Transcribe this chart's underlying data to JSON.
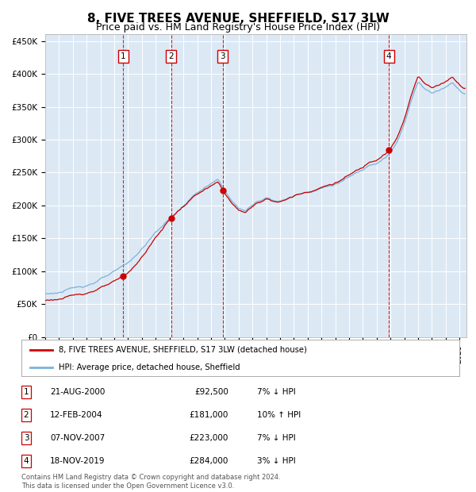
{
  "title": "8, FIVE TREES AVENUE, SHEFFIELD, S17 3LW",
  "subtitle": "Price paid vs. HM Land Registry's House Price Index (HPI)",
  "title_fontsize": 11,
  "subtitle_fontsize": 9,
  "background_color": "#ffffff",
  "plot_bg_color": "#dce9f5",
  "ylim": [
    0,
    460000
  ],
  "yticks": [
    0,
    50000,
    100000,
    150000,
    200000,
    250000,
    300000,
    350000,
    400000,
    450000
  ],
  "ytick_labels": [
    "£0",
    "£50K",
    "£100K",
    "£150K",
    "£200K",
    "£250K",
    "£300K",
    "£350K",
    "£400K",
    "£450K"
  ],
  "xlim_start": 1995.0,
  "xlim_end": 2025.5,
  "sale_dates": [
    2000.64,
    2004.11,
    2007.85,
    2019.88
  ],
  "sale_prices": [
    92500,
    181000,
    223000,
    284000
  ],
  "sale_labels": [
    "1",
    "2",
    "3",
    "4"
  ],
  "sale_date_strs": [
    "21-AUG-2000",
    "12-FEB-2004",
    "07-NOV-2007",
    "18-NOV-2019"
  ],
  "sale_price_strs": [
    "£92,500",
    "£181,000",
    "£223,000",
    "£284,000"
  ],
  "sale_pct_strs": [
    "7% ↓ HPI",
    "10% ↑ HPI",
    "7% ↓ HPI",
    "3% ↓ HPI"
  ],
  "hpi_line_color": "#7ab3d8",
  "price_line_color": "#cc0000",
  "sale_marker_color": "#cc0000",
  "dashed_line_color": "#cc0000",
  "legend_label_price": "8, FIVE TREES AVENUE, SHEFFIELD, S17 3LW (detached house)",
  "legend_label_hpi": "HPI: Average price, detached house, Sheffield",
  "footnote": "Contains HM Land Registry data © Crown copyright and database right 2024.\nThis data is licensed under the Open Government Licence v3.0.",
  "grid_color": "#ffffff",
  "label_box_color": "#cc0000",
  "hpi_keypoints": [
    [
      1995.0,
      65000
    ],
    [
      1996.0,
      68000
    ],
    [
      1997.0,
      72000
    ],
    [
      1998.0,
      78000
    ],
    [
      1999.0,
      88000
    ],
    [
      2000.0,
      96000
    ],
    [
      2001.0,
      108000
    ],
    [
      2002.0,
      130000
    ],
    [
      2003.0,
      155000
    ],
    [
      2004.0,
      175000
    ],
    [
      2005.0,
      195000
    ],
    [
      2006.0,
      215000
    ],
    [
      2007.5,
      232000
    ],
    [
      2008.5,
      200000
    ],
    [
      2009.0,
      188000
    ],
    [
      2009.5,
      185000
    ],
    [
      2010.0,
      193000
    ],
    [
      2011.0,
      205000
    ],
    [
      2012.0,
      200000
    ],
    [
      2013.0,
      208000
    ],
    [
      2014.0,
      215000
    ],
    [
      2015.0,
      222000
    ],
    [
      2016.0,
      228000
    ],
    [
      2017.0,
      238000
    ],
    [
      2018.0,
      248000
    ],
    [
      2018.5,
      258000
    ],
    [
      2019.0,
      262000
    ],
    [
      2019.5,
      270000
    ],
    [
      2020.0,
      278000
    ],
    [
      2020.5,
      295000
    ],
    [
      2021.0,
      320000
    ],
    [
      2021.5,
      355000
    ],
    [
      2022.0,
      385000
    ],
    [
      2022.5,
      375000
    ],
    [
      2023.0,
      368000
    ],
    [
      2023.5,
      372000
    ],
    [
      2024.0,
      378000
    ],
    [
      2024.5,
      385000
    ],
    [
      2025.0,
      375000
    ],
    [
      2025.3,
      370000
    ]
  ]
}
